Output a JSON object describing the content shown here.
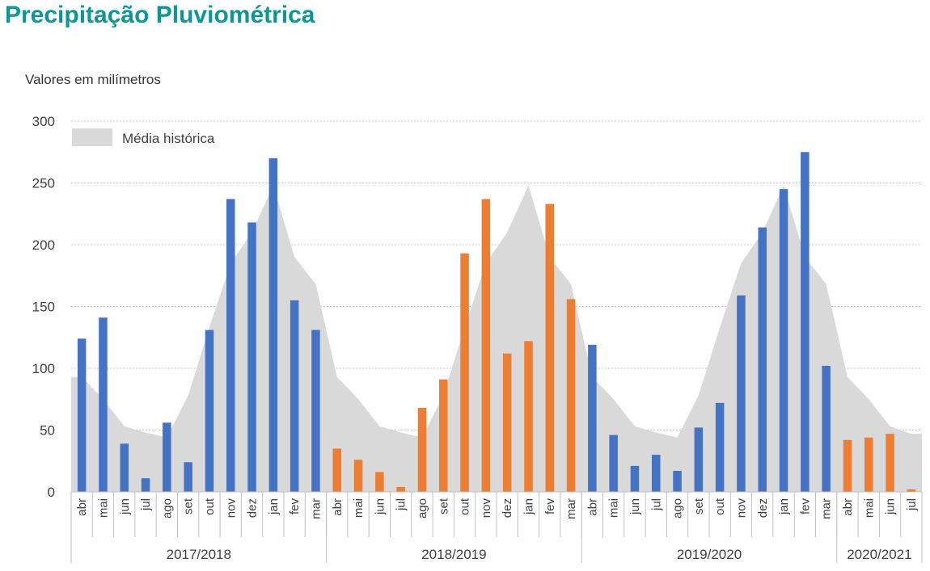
{
  "title": "Precipitação Pluviométrica",
  "chart_data": {
    "type": "bar",
    "title": "Precipitação Pluviométrica",
    "ylabel": "Valores em milímetros",
    "ylim": [
      0,
      300
    ],
    "yticks": [
      0,
      50,
      100,
      150,
      200,
      250,
      300
    ],
    "grid": true,
    "legend": {
      "label": "Média histórica",
      "position": "top-left"
    },
    "categories": [
      "abr",
      "mai",
      "jun",
      "jul",
      "ago",
      "set",
      "out",
      "nov",
      "dez",
      "jan",
      "fev",
      "mar",
      "abr",
      "mai",
      "jun",
      "jul",
      "ago",
      "set",
      "out",
      "nov",
      "dez",
      "jan",
      "fev",
      "mar",
      "abr",
      "mai",
      "jun",
      "jul",
      "ago",
      "set",
      "out",
      "nov",
      "dez",
      "jan",
      "fev",
      "mar",
      "abr",
      "mai",
      "jun",
      "jul"
    ],
    "groups": [
      {
        "label": "2017/2018",
        "count": 12,
        "color": "#4472c4"
      },
      {
        "label": "2018/2019",
        "count": 12,
        "color": "#ed7d31"
      },
      {
        "label": "2019/2020",
        "count": 12,
        "color": "#4472c4"
      },
      {
        "label": "2020/2021",
        "count": 4,
        "color": "#ed7d31"
      }
    ],
    "values": [
      124,
      141,
      39,
      11,
      56,
      24,
      131,
      237,
      218,
      270,
      155,
      131,
      35,
      26,
      16,
      4,
      68,
      91,
      193,
      237,
      112,
      122,
      233,
      156,
      119,
      46,
      21,
      30,
      17,
      52,
      72,
      159,
      214,
      245,
      275,
      102,
      42,
      44,
      47,
      2
    ],
    "historical_average": {
      "name": "Média histórica",
      "color": "#d9d9d9",
      "values": [
        93,
        75,
        53,
        48,
        44,
        78,
        133,
        185,
        210,
        248,
        190,
        168,
        93,
        75,
        53,
        48,
        44,
        78,
        133,
        185,
        210,
        248,
        190,
        168,
        93,
        75,
        53,
        48,
        44,
        78,
        133,
        185,
        210,
        248,
        190,
        168,
        93,
        75,
        53,
        47
      ]
    }
  }
}
